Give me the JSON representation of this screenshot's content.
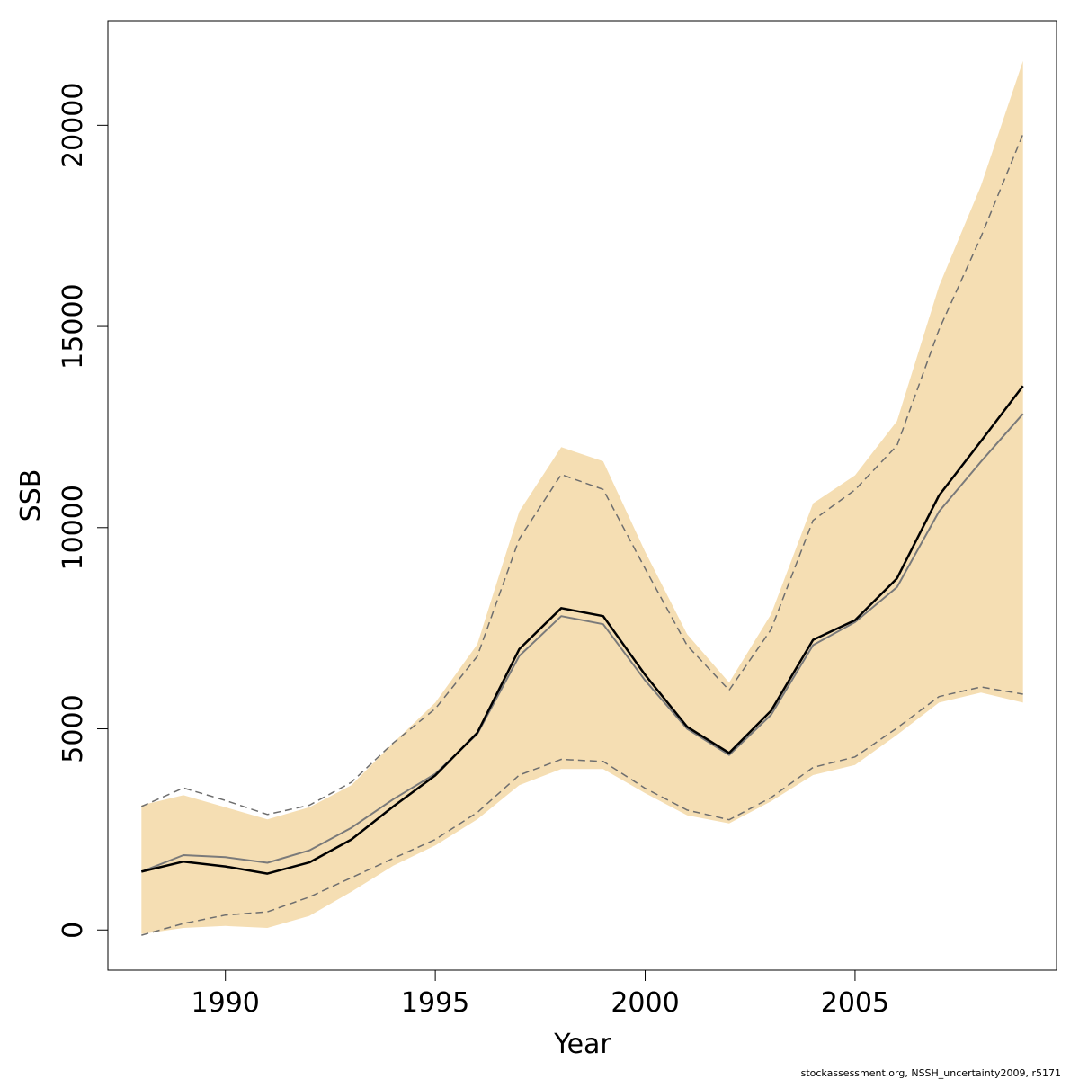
{
  "chart_data": {
    "type": "line",
    "xlabel": "Year",
    "ylabel": "SSB",
    "xlim": [
      1987.2,
      2009.8
    ],
    "ylim": [
      -1000,
      22600
    ],
    "x_ticks": [
      1990,
      1995,
      2000,
      2005
    ],
    "y_ticks": [
      0,
      5000,
      10000,
      15000,
      20000
    ],
    "grid": false,
    "footer": "stockassessment.org, NSSH_uncertainty2009, r5171",
    "colors": {
      "band": "#f5deb3",
      "main_line": "#000000",
      "secondary_line": "#7a7a7a",
      "dashed_lines": "#6e6e6e"
    },
    "x": [
      1988,
      1989,
      1990,
      1991,
      1992,
      1993,
      1994,
      1995,
      1996,
      1997,
      1998,
      1999,
      2000,
      2001,
      2002,
      2003,
      2004,
      2005,
      2006,
      2007,
      2008,
      2009
    ],
    "band_upper": [
      3100,
      3350,
      3050,
      2750,
      3050,
      3600,
      4650,
      5650,
      7100,
      10400,
      12000,
      11650,
      9400,
      7350,
      6150,
      7850,
      10600,
      11300,
      12650,
      16000,
      18500,
      21600
    ],
    "band_lower": [
      -100,
      50,
      100,
      50,
      350,
      950,
      1600,
      2100,
      2750,
      3600,
      4000,
      4000,
      3400,
      2850,
      2650,
      3200,
      3850,
      4100,
      4850,
      5650,
      5900,
      5650
    ],
    "series": [
      {
        "style": "solid-thick",
        "values": [
          1450,
          1700,
          1580,
          1400,
          1680,
          2250,
          3070,
          3840,
          4900,
          6980,
          8000,
          7800,
          6340,
          5050,
          4400,
          5450,
          7210,
          7700,
          8740,
          10800,
          12150,
          13520
        ]
      },
      {
        "style": "solid-thin",
        "values": [
          1450,
          1860,
          1810,
          1670,
          1980,
          2540,
          3250,
          3880,
          4870,
          6810,
          7800,
          7600,
          6200,
          5000,
          4350,
          5350,
          7080,
          7650,
          8520,
          10400,
          11640,
          12830
        ]
      },
      {
        "style": "dashed",
        "values": [
          3070,
          3530,
          3220,
          2870,
          3100,
          3670,
          4650,
          5500,
          6800,
          9720,
          11320,
          10950,
          8980,
          7070,
          5960,
          7470,
          10180,
          10940,
          12040,
          14920,
          17230,
          19780
        ]
      },
      {
        "style": "dashed",
        "values": [
          -130,
          160,
          370,
          450,
          820,
          1300,
          1780,
          2250,
          2920,
          3850,
          4240,
          4190,
          3520,
          2980,
          2740,
          3290,
          4040,
          4300,
          5020,
          5800,
          6040,
          5860
        ]
      }
    ]
  }
}
